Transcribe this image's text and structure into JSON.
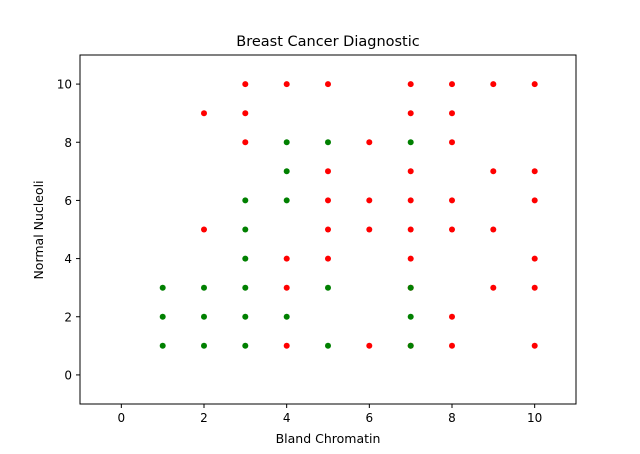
{
  "chart_data": {
    "type": "scatter",
    "title": "Breast Cancer Diagnostic",
    "xlabel": "Bland Chromatin",
    "ylabel": "Normal Nucleoli",
    "xlim": [
      -1,
      11
    ],
    "ylim": [
      -1,
      11
    ],
    "xticks": [
      "0",
      "2",
      "4",
      "6",
      "8",
      "10"
    ],
    "yticks": [
      "0",
      "2",
      "4",
      "6",
      "8",
      "10"
    ],
    "grid": false,
    "legend": "none",
    "series": [
      {
        "color": "#ff0000",
        "points": [
          [
            2,
            9
          ],
          [
            2,
            5
          ],
          [
            3,
            10
          ],
          [
            3,
            9
          ],
          [
            3,
            8
          ],
          [
            4,
            10
          ],
          [
            4,
            4
          ],
          [
            4,
            3
          ],
          [
            4,
            1
          ],
          [
            5,
            10
          ],
          [
            5,
            7
          ],
          [
            5,
            6
          ],
          [
            5,
            5
          ],
          [
            5,
            4
          ],
          [
            6,
            8
          ],
          [
            6,
            6
          ],
          [
            6,
            5
          ],
          [
            6,
            1
          ],
          [
            7,
            10
          ],
          [
            7,
            9
          ],
          [
            7,
            7
          ],
          [
            7,
            6
          ],
          [
            7,
            5
          ],
          [
            7,
            4
          ],
          [
            7,
            3
          ],
          [
            7,
            1
          ],
          [
            8,
            10
          ],
          [
            8,
            9
          ],
          [
            8,
            8
          ],
          [
            8,
            6
          ],
          [
            8,
            5
          ],
          [
            8,
            2
          ],
          [
            8,
            1
          ],
          [
            9,
            10
          ],
          [
            9,
            7
          ],
          [
            9,
            5
          ],
          [
            9,
            3
          ],
          [
            10,
            10
          ],
          [
            10,
            7
          ],
          [
            10,
            6
          ],
          [
            10,
            4
          ],
          [
            10,
            3
          ],
          [
            10,
            1
          ]
        ]
      },
      {
        "color": "#008000",
        "points": [
          [
            1,
            3
          ],
          [
            1,
            2
          ],
          [
            1,
            1
          ],
          [
            2,
            3
          ],
          [
            2,
            2
          ],
          [
            2,
            1
          ],
          [
            3,
            6
          ],
          [
            3,
            5
          ],
          [
            3,
            4
          ],
          [
            3,
            3
          ],
          [
            3,
            2
          ],
          [
            3,
            1
          ],
          [
            4,
            8
          ],
          [
            4,
            7
          ],
          [
            4,
            6
          ],
          [
            4,
            2
          ],
          [
            5,
            8
          ],
          [
            5,
            3
          ],
          [
            5,
            1
          ],
          [
            7,
            8
          ],
          [
            7,
            3
          ],
          [
            7,
            2
          ],
          [
            7,
            1
          ]
        ]
      }
    ]
  }
}
